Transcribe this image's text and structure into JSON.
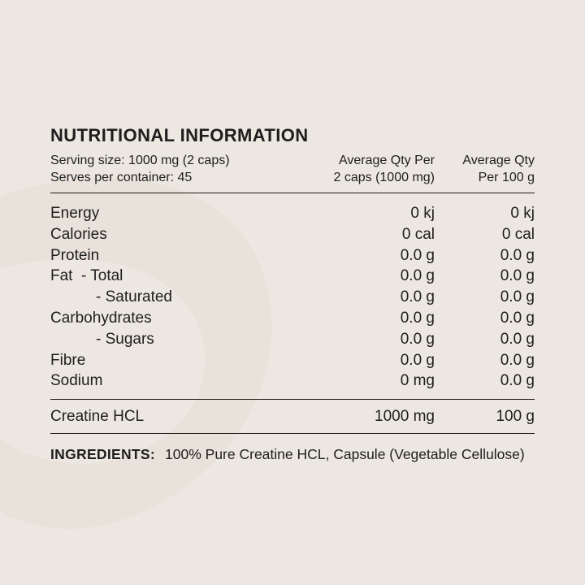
{
  "title": "NUTRITIONAL INFORMATION",
  "serving": {
    "size": "Serving size: 1000 mg (2 caps)",
    "per_container": "Serves per container: 45"
  },
  "columns": {
    "per_serve_line1": "Average Qty Per",
    "per_serve_line2": "2 caps (1000 mg)",
    "per_100_line1": "Average Qty",
    "per_100_line2": "Per 100 g"
  },
  "rows": [
    {
      "label": "Energy",
      "serve": "0 kj",
      "per100": "0 kj"
    },
    {
      "label": "Calories",
      "serve": "0 cal",
      "per100": "0 cal"
    },
    {
      "label": "Protein",
      "serve": "0.0 g",
      "per100": "0.0 g"
    },
    {
      "label": "Fat  - Total",
      "serve": "0.0 g",
      "per100": "0.0 g"
    },
    {
      "label": "- Saturated",
      "serve": "0.0 g",
      "per100": "0.0 g"
    },
    {
      "label": "Carbohydrates",
      "serve": "0.0 g",
      "per100": "0.0 g"
    },
    {
      "label": "- Sugars",
      "serve": "0.0 g",
      "per100": "0.0 g"
    },
    {
      "label": "Fibre",
      "serve": "0.0 g",
      "per100": "0.0 g"
    },
    {
      "label": "Sodium",
      "serve": "0 mg",
      "per100": "0.0 g"
    }
  ],
  "active": {
    "label": "Creatine HCL",
    "serve": "1000 mg",
    "per100": "100 g"
  },
  "ingredients": {
    "label": "INGREDIENTS:",
    "text": "100% Pure Creatine HCL, Capsule (Vegetable Cellulose)"
  },
  "colors": {
    "background": "#ece7e0",
    "text": "#1e1e1e",
    "swirl": "#e6e0d8"
  }
}
